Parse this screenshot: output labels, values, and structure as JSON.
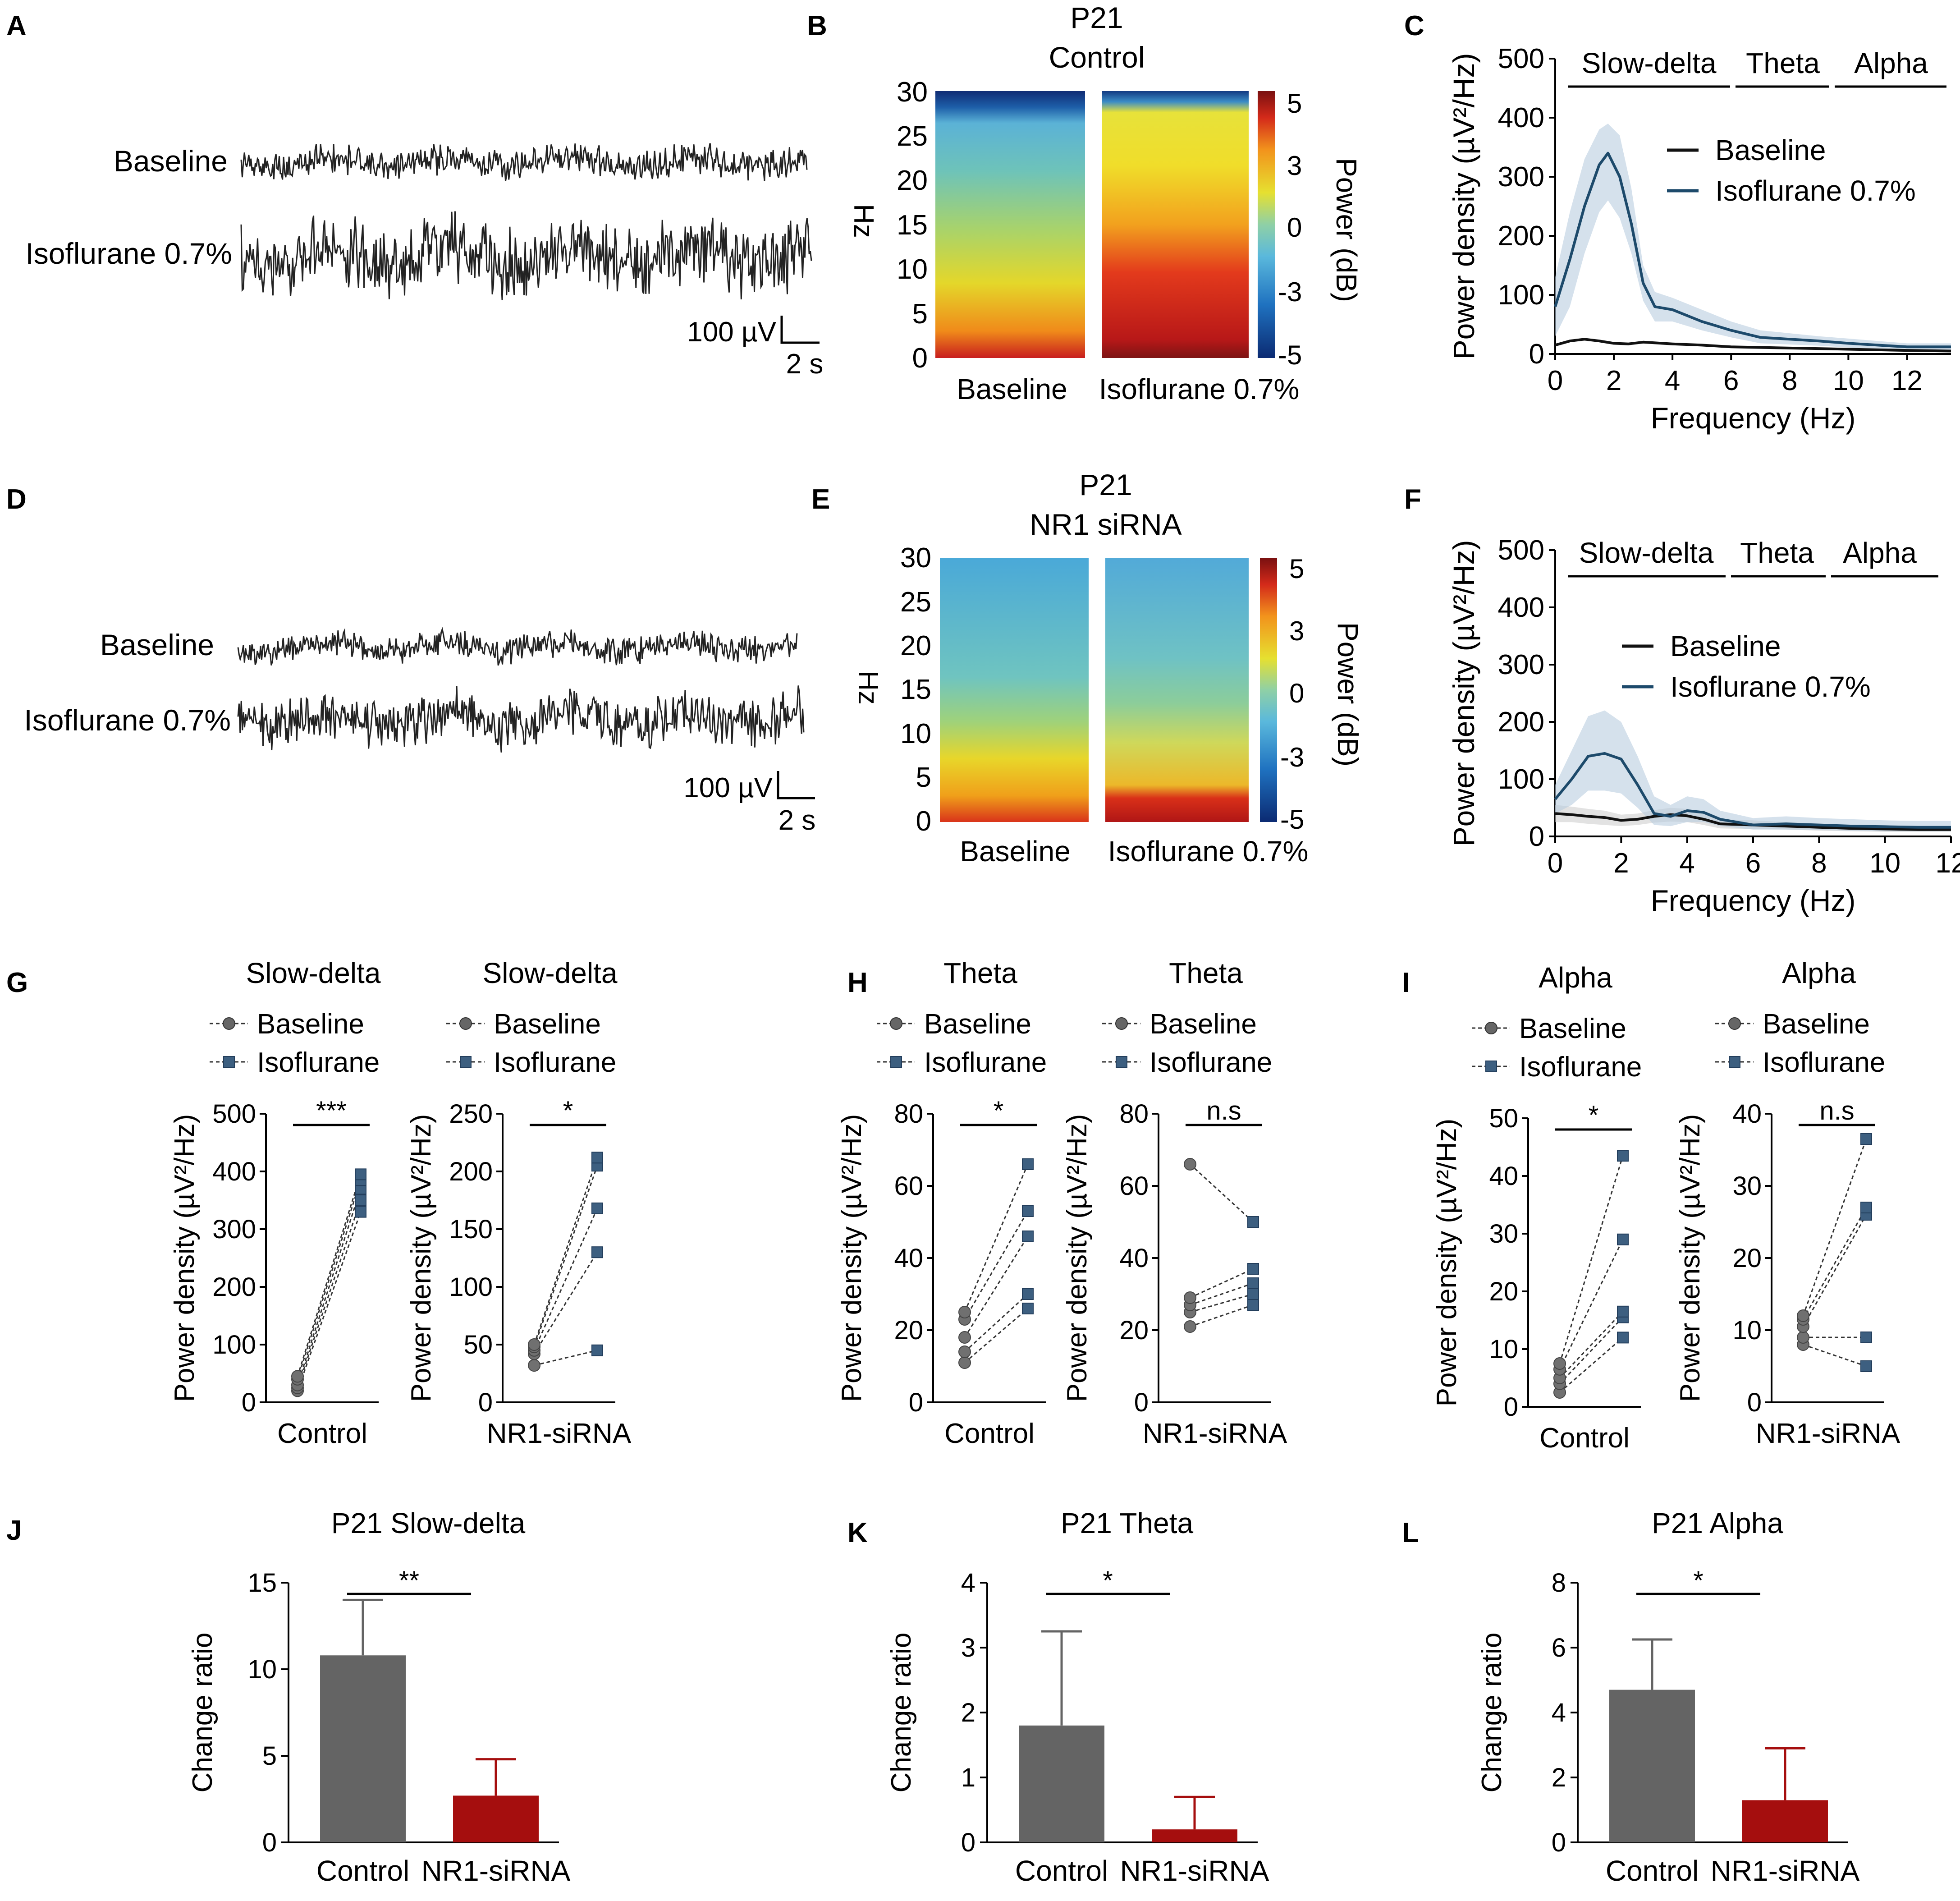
{
  "figure": {
    "units": {
      "uv": "100 µV",
      "sec": "2 s"
    }
  },
  "panel_letters": [
    "A",
    "B",
    "C",
    "D",
    "E",
    "F",
    "G",
    "H",
    "I",
    "J",
    "K",
    "L"
  ],
  "chart_data": [
    {
      "id": "A",
      "type": "line",
      "description": "EEG raw traces",
      "traces": [
        {
          "label": "Baseline"
        },
        {
          "label": "Isoflurane 0.7%"
        }
      ],
      "scalebar": {
        "amplitude": "100 µV",
        "time": "2 s"
      }
    },
    {
      "id": "B",
      "type": "heatmap",
      "title": [
        "P21",
        "Control"
      ],
      "ylabel": "Hz",
      "yticks": [
        "0",
        "5",
        "10",
        "15",
        "20",
        "25",
        "30"
      ],
      "ylim": [
        0,
        30
      ],
      "conditions": [
        "Baseline",
        "Isoflurane 0.7%"
      ],
      "colorbar": {
        "label": "Power (dB)",
        "ticks": [
          "5",
          "3",
          "0",
          "-3",
          "-5"
        ],
        "range": [
          -5,
          5
        ]
      }
    },
    {
      "id": "C",
      "type": "line",
      "xlabel": "Frequency (Hz)",
      "ylabel": "Power density (µV²/Hz)",
      "xlim": [
        0,
        13.5
      ],
      "ylim": [
        0,
        500
      ],
      "xticks": [
        "0",
        "2",
        "4",
        "6",
        "8",
        "10",
        "12"
      ],
      "yticks": [
        "0",
        "100",
        "200",
        "300",
        "400",
        "500"
      ],
      "bands": [
        "Slow-delta",
        "Theta",
        "Alpha"
      ],
      "series": [
        {
          "name": "Baseline",
          "color": "#111111",
          "x": [
            0,
            0.5,
            1,
            1.5,
            2,
            2.5,
            3,
            4,
            5,
            6,
            8,
            10,
            12,
            13.5
          ],
          "y": [
            15,
            22,
            25,
            22,
            18,
            17,
            20,
            17,
            15,
            12,
            10,
            8,
            6,
            5
          ]
        },
        {
          "name": "Isoflurane 0.7%",
          "color": "#1d4a6b",
          "x": [
            0,
            0.5,
            1,
            1.5,
            1.8,
            2.2,
            2.6,
            3,
            3.4,
            4,
            5,
            6,
            7,
            8,
            9,
            10,
            11,
            12,
            13.5
          ],
          "y": [
            80,
            160,
            250,
            320,
            340,
            300,
            220,
            120,
            80,
            75,
            55,
            40,
            28,
            25,
            22,
            18,
            15,
            12,
            12
          ],
          "band_lo": [
            30,
            80,
            170,
            240,
            260,
            230,
            170,
            90,
            55,
            55,
            40,
            28,
            18,
            16,
            14,
            11,
            9,
            7,
            7
          ],
          "band_hi": [
            130,
            240,
            330,
            380,
            390,
            370,
            280,
            150,
            105,
            95,
            75,
            55,
            40,
            35,
            30,
            26,
            22,
            18,
            18
          ]
        }
      ]
    },
    {
      "id": "D",
      "type": "line",
      "description": "EEG raw traces",
      "traces": [
        {
          "label": "Baseline"
        },
        {
          "label": "Isoflurane 0.7%"
        }
      ],
      "scalebar": {
        "amplitude": "100 µV",
        "time": "2 s"
      }
    },
    {
      "id": "E",
      "type": "heatmap",
      "title": [
        "P21",
        "NR1 siRNA"
      ],
      "ylabel": "Hz",
      "yticks": [
        "0",
        "5",
        "10",
        "15",
        "20",
        "25",
        "30"
      ],
      "ylim": [
        0,
        30
      ],
      "conditions": [
        "Baseline",
        "Isoflurane 0.7%"
      ],
      "colorbar": {
        "label": "Power (dB)",
        "ticks": [
          "5",
          "3",
          "0",
          "-3",
          "-5"
        ],
        "range": [
          -5,
          5
        ]
      }
    },
    {
      "id": "F",
      "type": "line",
      "xlabel": "Frequency (Hz)",
      "ylabel": "Power density (µV²/Hz)",
      "xlim": [
        0,
        12
      ],
      "ylim": [
        0,
        500
      ],
      "xticks": [
        "0",
        "2",
        "4",
        "6",
        "8",
        "10",
        "12"
      ],
      "yticks": [
        "0",
        "100",
        "200",
        "300",
        "400",
        "500"
      ],
      "bands": [
        "Slow-delta",
        "Theta",
        "Alpha"
      ],
      "series": [
        {
          "name": "Baseline",
          "color": "#111111",
          "x": [
            0,
            0.5,
            1,
            1.5,
            2,
            2.5,
            3,
            3.5,
            4,
            4.5,
            5,
            6,
            7,
            8,
            9,
            10,
            11,
            12
          ],
          "y": [
            40,
            38,
            35,
            33,
            28,
            30,
            35,
            38,
            36,
            30,
            22,
            20,
            18,
            16,
            14,
            13,
            12,
            12
          ],
          "band_lo": [
            25,
            25,
            22,
            20,
            18,
            20,
            24,
            26,
            25,
            20,
            14,
            13,
            12,
            10,
            9,
            8,
            8,
            8
          ],
          "band_hi": [
            55,
            52,
            48,
            45,
            38,
            40,
            46,
            50,
            48,
            40,
            30,
            28,
            25,
            22,
            20,
            18,
            17,
            17
          ]
        },
        {
          "name": "Isoflurane 0.7%",
          "color": "#1d4a6b",
          "x": [
            0,
            0.5,
            1,
            1.5,
            2,
            2.5,
            3,
            3.5,
            4,
            4.5,
            5,
            6,
            7,
            8,
            9,
            10,
            11,
            12
          ],
          "y": [
            65,
            100,
            140,
            145,
            135,
            90,
            40,
            35,
            45,
            42,
            30,
            20,
            22,
            20,
            18,
            17,
            16,
            16
          ],
          "band_lo": [
            40,
            55,
            80,
            80,
            75,
            50,
            20,
            18,
            25,
            25,
            18,
            12,
            12,
            11,
            10,
            9,
            9,
            9
          ],
          "band_hi": [
            90,
            150,
            210,
            220,
            200,
            140,
            70,
            55,
            70,
            65,
            45,
            32,
            35,
            32,
            30,
            28,
            27,
            27
          ]
        }
      ]
    },
    {
      "id": "G1",
      "type": "scatter",
      "title": "Slow-delta",
      "xlabel": "Control",
      "ylabel": "Power density (µV²/Hz)",
      "ylim": [
        0,
        500
      ],
      "yticks": [
        "0",
        "100",
        "200",
        "300",
        "400",
        "500"
      ],
      "legend": [
        "Baseline",
        "Isoflurane"
      ],
      "significance": "***",
      "baseline": [
        20,
        25,
        30,
        40,
        45
      ],
      "isoflurane": [
        330,
        350,
        370,
        385,
        395
      ]
    },
    {
      "id": "G2",
      "type": "scatter",
      "title": "Slow-delta",
      "xlabel": "NR1-siRNA",
      "ylabel": "Power density (µV²/Hz)",
      "ylim": [
        0,
        250
      ],
      "yticks": [
        "0",
        "50",
        "100",
        "150",
        "200",
        "250"
      ],
      "legend": [
        "Baseline",
        "Isoflurane"
      ],
      "significance": "*",
      "baseline": [
        32,
        42,
        45,
        48,
        50
      ],
      "isoflurane": [
        45,
        130,
        168,
        205,
        212
      ]
    },
    {
      "id": "H1",
      "type": "scatter",
      "title": "Theta",
      "xlabel": "Control",
      "ylabel": "Power density (µV²/Hz)",
      "ylim": [
        0,
        80
      ],
      "yticks": [
        "0",
        "20",
        "40",
        "60",
        "80"
      ],
      "legend": [
        "Baseline",
        "Isoflurane"
      ],
      "significance": "*",
      "baseline": [
        11,
        14,
        18,
        23,
        25
      ],
      "isoflurane": [
        26,
        30,
        46,
        53,
        66
      ]
    },
    {
      "id": "H2",
      "type": "scatter",
      "title": "Theta",
      "xlabel": "NR1-siRNA",
      "ylabel": "Power density (µV²/Hz)",
      "ylim": [
        0,
        80
      ],
      "yticks": [
        "0",
        "20",
        "40",
        "60",
        "80"
      ],
      "legend": [
        "Baseline",
        "Isoflurane"
      ],
      "significance": "n.s",
      "baseline": [
        21,
        25,
        27,
        29,
        66
      ],
      "isoflurane": [
        27,
        30,
        33,
        37,
        50
      ]
    },
    {
      "id": "I1",
      "type": "scatter",
      "title": "Alpha",
      "xlabel": "Control",
      "ylabel": "Power density (µV²/Hz)",
      "ylim": [
        0,
        50
      ],
      "yticks": [
        "0",
        "10",
        "20",
        "30",
        "40",
        "50"
      ],
      "legend": [
        "Baseline",
        "Isoflurane"
      ],
      "significance": "*",
      "baseline": [
        2.5,
        4,
        5,
        6.5,
        7.5
      ],
      "isoflurane": [
        12,
        15.5,
        16.5,
        29,
        43.5
      ]
    },
    {
      "id": "I2",
      "type": "scatter",
      "title": "Alpha",
      "xlabel": "NR1-siRNA",
      "ylabel": "Power density (µV²/Hz)",
      "ylim": [
        0,
        40
      ],
      "yticks": [
        "0",
        "10",
        "20",
        "30",
        "40"
      ],
      "legend": [
        "Baseline",
        "Isoflurane"
      ],
      "significance": "n.s",
      "baseline": [
        8,
        9,
        10.5,
        11.5,
        12
      ],
      "isoflurane": [
        5,
        9,
        26,
        27,
        36.5
      ]
    },
    {
      "id": "J",
      "type": "bar",
      "title": "P21 Slow-delta",
      "ylabel": "Change ratio",
      "categories": [
        "Control",
        "NR1-siRNA"
      ],
      "values": [
        10.8,
        2.7
      ],
      "errors": [
        3.2,
        2.1
      ],
      "colors": [
        "#646464",
        "#a50e0e"
      ],
      "ylim": [
        0,
        15
      ],
      "yticks": [
        "0",
        "5",
        "10",
        "15"
      ],
      "significance": "**"
    },
    {
      "id": "K",
      "type": "bar",
      "title": "P21 Theta",
      "ylabel": "Change ratio",
      "categories": [
        "Control",
        "NR1-siRNA"
      ],
      "values": [
        1.8,
        0.2
      ],
      "errors": [
        1.45,
        0.5
      ],
      "colors": [
        "#646464",
        "#a50e0e"
      ],
      "ylim": [
        0,
        4
      ],
      "yticks": [
        "0",
        "1",
        "2",
        "3",
        "4"
      ],
      "significance": "*"
    },
    {
      "id": "L",
      "type": "bar",
      "title": "P21 Alpha",
      "ylabel": "Change ratio",
      "categories": [
        "Control",
        "NR1-siRNA"
      ],
      "values": [
        4.7,
        1.3
      ],
      "errors": [
        1.55,
        1.6
      ],
      "colors": [
        "#646464",
        "#a50e0e"
      ],
      "ylim": [
        0,
        8
      ],
      "yticks": [
        "0",
        "2",
        "4",
        "6",
        "8"
      ],
      "significance": "*"
    }
  ]
}
